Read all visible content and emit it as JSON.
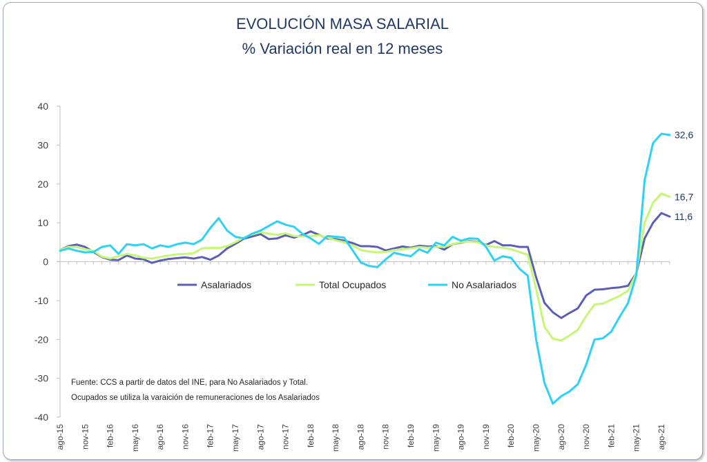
{
  "chart_data": {
    "type": "line",
    "title": "EVOLUCIÓN MASA SALARIAL",
    "subtitle": "% Variación real en 12 meses",
    "xlabel": "",
    "ylabel": "",
    "ylim": [
      -40,
      40
    ],
    "yticks": [
      "40",
      "30",
      "20",
      "10",
      "0",
      "-10",
      "-20",
      "-30",
      "-40"
    ],
    "xticks": [
      "ago-15",
      "nov-15",
      "feb-16",
      "may-16",
      "ago-16",
      "nov-16",
      "feb-17",
      "may-17",
      "ago-17",
      "nov-17",
      "feb-18",
      "may-18",
      "ago-18",
      "nov-18",
      "feb-19",
      "may-19",
      "ago-19",
      "nov-19",
      "feb-20",
      "may-20",
      "ago-20",
      "nov-20",
      "feb-21",
      "may-21",
      "ago-21"
    ],
    "legend_position": "inside-middle",
    "grid": false,
    "series": [
      {
        "name": "Asalariados",
        "color": "#5b5eb4",
        "end_label": "11,6",
        "values": [
          3.0,
          4.0,
          4.4,
          3.8,
          2.5,
          1.2,
          0.5,
          0.4,
          1.6,
          0.8,
          0.6,
          -0.3,
          0.3,
          0.7,
          0.9,
          1.1,
          0.8,
          1.2,
          0.5,
          1.6,
          3.4,
          4.6,
          5.9,
          6.5,
          7.1,
          5.8,
          6.0,
          6.8,
          6.2,
          6.8,
          7.8,
          6.9,
          6.0,
          5.8,
          5.4,
          4.8,
          4.0,
          4.0,
          3.8,
          2.9,
          3.4,
          3.9,
          3.6,
          4.1,
          3.9,
          4.0,
          3.1,
          4.5,
          4.9,
          5.3,
          5.1,
          4.3,
          5.3,
          4.2,
          4.2,
          3.8,
          3.8,
          -4.0,
          -10.6,
          -13.0,
          -14.5,
          -13.2,
          -12.0,
          -8.7,
          -7.2,
          -7.1,
          -6.8,
          -6.6,
          -6.2,
          -3.0,
          6.0,
          10.0,
          12.5,
          11.6
        ]
      },
      {
        "name": "Total Ocupados",
        "color": "#c5f774",
        "end_label": "16,7",
        "values": [
          3.0,
          3.8,
          3.8,
          3.2,
          2.8,
          1.3,
          0.8,
          1.4,
          2.0,
          1.6,
          1.0,
          0.8,
          1.2,
          1.6,
          1.9,
          2.0,
          2.2,
          3.4,
          3.6,
          3.5,
          4.0,
          5.0,
          6.2,
          7.0,
          7.6,
          7.2,
          6.9,
          7.3,
          6.6,
          6.5,
          6.6,
          6.8,
          6.2,
          5.5,
          5.0,
          4.2,
          3.0,
          2.6,
          2.4,
          2.5,
          3.0,
          3.2,
          3.4,
          3.8,
          3.6,
          3.8,
          3.8,
          4.5,
          5.0,
          5.2,
          5.0,
          4.2,
          3.8,
          3.6,
          3.2,
          2.5,
          1.8,
          -7.0,
          -16.8,
          -19.8,
          -20.3,
          -19.0,
          -17.5,
          -14.0,
          -11.0,
          -10.8,
          -9.8,
          -8.8,
          -7.5,
          -3.0,
          10.0,
          15.2,
          17.5,
          16.7
        ]
      },
      {
        "name": "No Asalariados",
        "color": "#2bd2f6",
        "end_label": "32,6",
        "values": [
          2.8,
          3.4,
          2.8,
          2.4,
          2.5,
          3.8,
          4.2,
          2.0,
          4.5,
          4.2,
          4.5,
          3.4,
          4.2,
          3.8,
          4.5,
          4.9,
          4.5,
          5.7,
          8.7,
          11.2,
          8.0,
          6.4,
          6.0,
          7.2,
          8.0,
          9.2,
          10.4,
          9.5,
          9.0,
          7.2,
          6.0,
          4.6,
          6.6,
          6.4,
          6.2,
          3.0,
          -0.2,
          -1.1,
          -1.4,
          0.6,
          2.3,
          1.8,
          1.4,
          3.2,
          2.3,
          4.9,
          4.2,
          6.4,
          5.4,
          6.0,
          5.9,
          3.8,
          0.3,
          1.4,
          1.0,
          -1.8,
          -3.6,
          -20.0,
          -31.2,
          -36.5,
          -34.6,
          -33.4,
          -31.5,
          -26.5,
          -20.0,
          -19.7,
          -18.0,
          -14.2,
          -10.7,
          -3.5,
          21.0,
          30.5,
          32.9,
          32.6
        ]
      }
    ],
    "note": [
      "Fuente: CCS a partir de datos del INE, para No Asalariados y Total.",
      "Ocupados se utiliza la varaición de remuneraciones de los Asalariados"
    ]
  }
}
